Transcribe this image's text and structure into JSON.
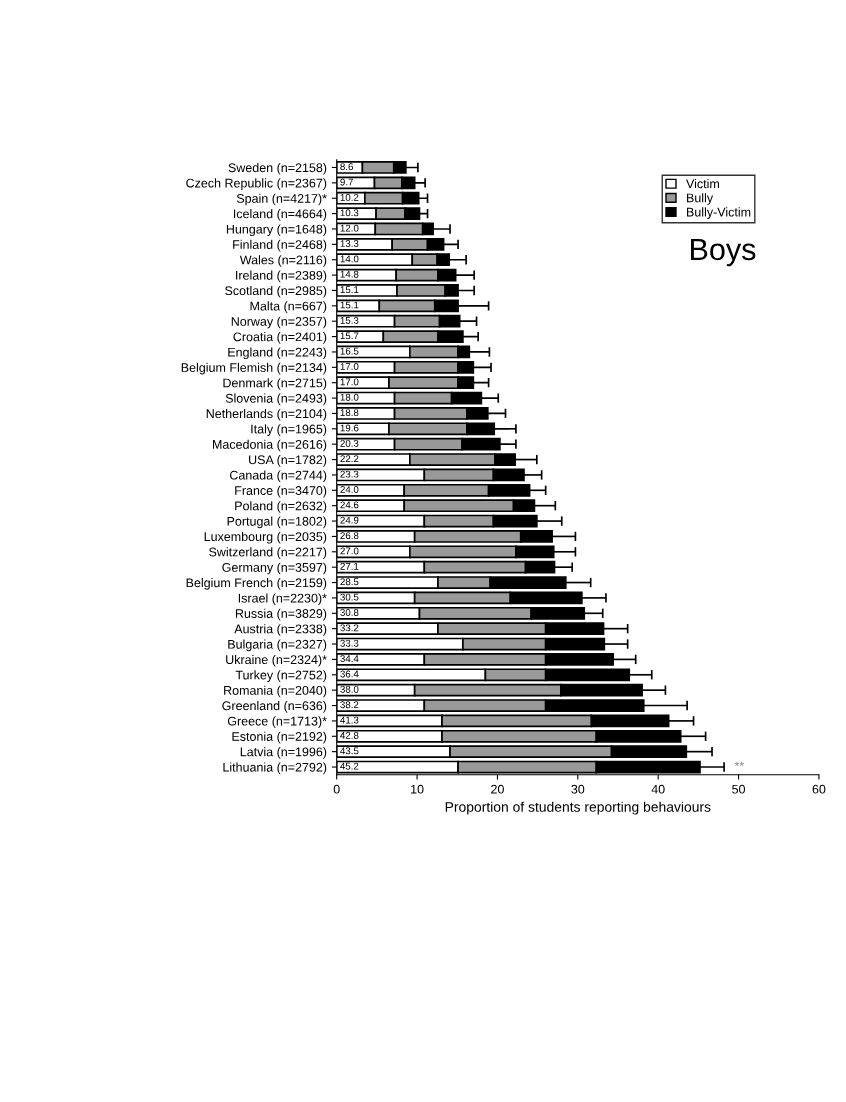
{
  "chart_data": {
    "type": "bar",
    "orientation": "horizontal",
    "stacked": true,
    "xlabel": "Proportion of students reporting behaviours",
    "categories": [
      "Sweden (n=2158)",
      "Czech Republic (n=2367)",
      "Spain (n=4217)*",
      "Iceland (n=4664)",
      "Hungary (n=1648)",
      "Finland (n=2468)",
      "Wales (n=2116)",
      "Ireland (n=2389)",
      "Scotland (n=2985)",
      "Malta (n=667)",
      "Norway (n=2357)",
      "Croatia (n=2401)",
      "England (n=2243)",
      "Belgium Flemish (n=2134)",
      "Denmark (n=2715)",
      "Slovenia (n=2493)",
      "Netherlands (n=2104)",
      "Italy (n=1965)",
      "Macedonia (n=2616)",
      "USA (n=1782)",
      "Canada (n=2744)",
      "France (n=3470)",
      "Poland (n=2632)",
      "Portugal (n=1802)",
      "Luxembourg (n=2035)",
      "Switzerland (n=2217)",
      "Germany (n=3597)",
      "Belgium French (n=2159)",
      "Israel (n=2230)*",
      "Russia (n=3829)",
      "Austria (n=2338)",
      "Bulgaria (n=2327)",
      "Ukraine (n=2324)*",
      "Turkey (n=2752)",
      "Romania (n=2040)",
      "Greenland (n=636)",
      "Greece (n=1713)*",
      "Estonia (n=2192)",
      "Latvia (n=1996)",
      "Lithuania (n=2792)"
    ],
    "series": [
      {
        "name": "Victim",
        "color": "#ffffff",
        "values": [
          3.2,
          4.7,
          3.5,
          4.9,
          4.8,
          6.9,
          9.4,
          7.4,
          7.5,
          5.3,
          7.2,
          5.8,
          9.1,
          7.2,
          6.5,
          7.2,
          7.2,
          6.5,
          7.2,
          9.1,
          10.9,
          8.4,
          8.4,
          10.9,
          9.7,
          9.1,
          10.9,
          12.6,
          9.7,
          10.3,
          12.6,
          15.7,
          10.9,
          18.5,
          9.7,
          10.9,
          13.1,
          13.1,
          14.1,
          15.1
        ]
      },
      {
        "name": "Bully",
        "color": "#999999",
        "values": [
          3.9,
          3.4,
          4.7,
          3.6,
          5.9,
          4.4,
          3.1,
          5.2,
          6.0,
          6.9,
          5.6,
          6.8,
          6.0,
          7.9,
          8.6,
          7.1,
          9.0,
          9.7,
          8.4,
          10.6,
          8.6,
          10.5,
          13.6,
          8.6,
          13.2,
          13.2,
          12.6,
          6.5,
          11.9,
          13.9,
          13.4,
          10.3,
          15.1,
          7.5,
          18.2,
          15.1,
          18.6,
          19.2,
          20.1,
          17.2
        ]
      },
      {
        "name": "Bully-Victim",
        "color": "#000000",
        "values": [
          1.5,
          1.6,
          2.0,
          1.8,
          1.3,
          2.0,
          1.5,
          2.2,
          1.6,
          2.9,
          2.5,
          3.1,
          1.4,
          1.9,
          1.9,
          3.7,
          2.6,
          3.4,
          4.7,
          2.5,
          3.8,
          5.1,
          2.6,
          5.4,
          3.9,
          4.7,
          3.6,
          9.4,
          8.9,
          6.6,
          7.2,
          7.3,
          8.4,
          10.4,
          10.1,
          12.2,
          9.6,
          10.5,
          9.3,
          12.9
        ],
        "errors": [
          [
            8.6,
            10.1
          ],
          [
            9.7,
            11.0
          ],
          [
            10.2,
            11.3
          ],
          [
            10.3,
            11.3
          ],
          [
            12.0,
            14.1
          ],
          [
            13.3,
            15.1
          ],
          [
            14.0,
            16.1
          ],
          [
            14.8,
            17.1
          ],
          [
            15.1,
            17.1
          ],
          [
            15.1,
            18.9
          ],
          [
            15.3,
            17.4
          ],
          [
            15.7,
            17.6
          ],
          [
            16.5,
            19.0
          ],
          [
            17.0,
            19.2
          ],
          [
            17.0,
            18.9
          ],
          [
            18.0,
            20.1
          ],
          [
            18.8,
            21.0
          ],
          [
            19.6,
            22.3
          ],
          [
            20.3,
            22.3
          ],
          [
            22.2,
            24.9
          ],
          [
            23.3,
            25.5
          ],
          [
            24.0,
            26.0
          ],
          [
            24.6,
            27.2
          ],
          [
            24.9,
            28.0
          ],
          [
            26.8,
            29.7
          ],
          [
            27.0,
            29.7
          ],
          [
            27.1,
            29.3
          ],
          [
            28.5,
            31.6
          ],
          [
            30.5,
            33.5
          ],
          [
            30.8,
            33.1
          ],
          [
            33.2,
            36.2
          ],
          [
            33.3,
            36.2
          ],
          [
            34.4,
            37.2
          ],
          [
            36.4,
            39.2
          ],
          [
            38.0,
            40.9
          ],
          [
            38.2,
            43.6
          ],
          [
            41.3,
            44.4
          ],
          [
            42.8,
            45.9
          ],
          [
            43.5,
            46.7
          ],
          [
            45.2,
            48.2
          ]
        ]
      }
    ],
    "totals": [
      "8.6",
      "9.7",
      "10.2",
      "10.3",
      "12.0",
      "13.3",
      "14.0",
      "14.8",
      "15.1",
      "15.1",
      "15.3",
      "15.7",
      "16.5",
      "17.0",
      "17.0",
      "18.0",
      "18.8",
      "19.6",
      "20.3",
      "22.2",
      "23.3",
      "24.0",
      "24.6",
      "24.9",
      "26.8",
      "27.0",
      "27.1",
      "28.5",
      "30.5",
      "30.8",
      "33.2",
      "33.3",
      "34.4",
      "36.4",
      "38.0",
      "38.2",
      "41.3",
      "42.8",
      "43.5",
      "45.2"
    ],
    "xlim": [
      0,
      60
    ],
    "xticks": [
      0,
      10,
      20,
      30,
      40,
      50,
      60
    ],
    "annotations": [
      "Boys",
      "**"
    ],
    "legend": "top right",
    "grid": false
  }
}
